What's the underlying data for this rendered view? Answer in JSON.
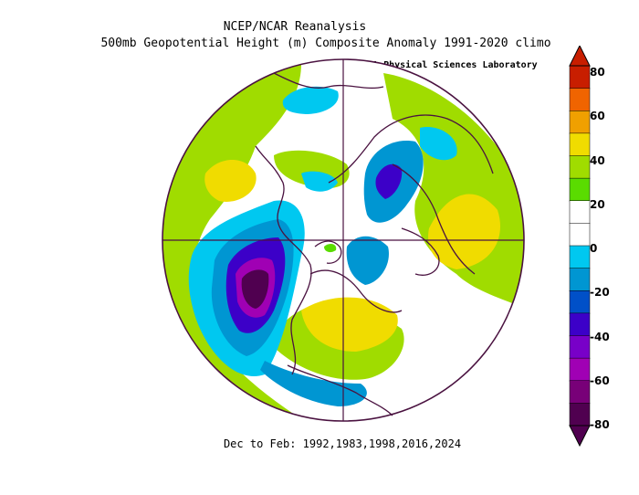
{
  "header": {
    "title": "NCEP/NCAR Reanalysis",
    "subtitle": "500mb Geopotential Height (m) Composite Anomaly 1991-2020 climo",
    "credit": "NOAA Physical Sciences Laboratory"
  },
  "footer": {
    "caption": "Dec to Feb: 1992,1983,1998,2016,2024"
  },
  "colorbar": {
    "ticks": [
      "80",
      "60",
      "40",
      "20",
      "0",
      "-20",
      "-40",
      "-60",
      "-80"
    ],
    "colors": [
      "#c81e00",
      "#f06400",
      "#f0a000",
      "#f0dc00",
      "#a0dc00",
      "#5adc00",
      "#ffffff",
      "#ffffff",
      "#00c8f0",
      "#0096d2",
      "#0050c8",
      "#3c00c8",
      "#7800c8",
      "#a000b4",
      "#780078",
      "#500050"
    ]
  },
  "map": {
    "projection": "north-polar-stereographic",
    "land_outline_color": "#4a1240",
    "ring_color": "#4a1240"
  }
}
